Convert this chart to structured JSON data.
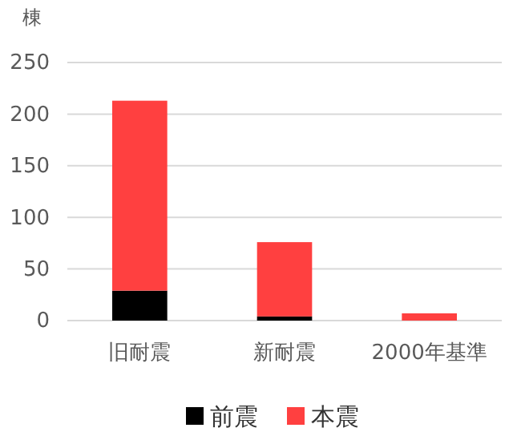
{
  "chart_data": {
    "type": "bar",
    "ylabel": "棟",
    "categories": [
      "旧耐震",
      "新耐震",
      "2000年基準"
    ],
    "stacked": true,
    "series": [
      {
        "name": "前震",
        "color": "#000000",
        "values": [
          29,
          4,
          0
        ]
      },
      {
        "name": "本震",
        "color": "#ff4040",
        "values": [
          184,
          72,
          7
        ]
      }
    ],
    "ylim": [
      0,
      250
    ],
    "yticks": [
      0,
      50,
      100,
      150,
      200,
      250
    ],
    "grid": "y",
    "legend": "bottom"
  }
}
